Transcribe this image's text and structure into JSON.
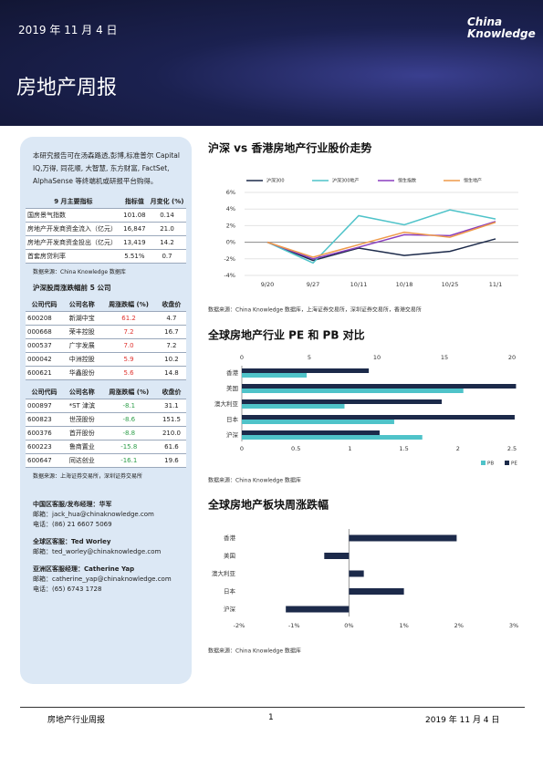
{
  "header": {
    "date": "2019 年 11 月 4 日",
    "logo": [
      "China",
      "Knowledge"
    ],
    "title": "房地产周报"
  },
  "sidebar": {
    "intro": "本研究报告可在汤森路透,彭博,标准普尔 Capital IQ,万得, 同花顺, 大智慧, 东方财富, FactSet, AlphaSense 等终端机或研报平台购得。",
    "tables": [
      {
        "header": [
          "9 月主要指标",
          "指标值",
          "月变化 (%)"
        ],
        "rows": [
          [
            "国房景气指数",
            "101.08",
            "0.14"
          ],
          [
            "房地产开发商资金流入（亿元）",
            "16,847",
            "21.0"
          ],
          [
            "房地产开发商资金投出（亿元）",
            "13,419",
            "14.2"
          ],
          [
            "首套房贷利率",
            "5.51%",
            "0.7"
          ]
        ],
        "source": "数据来源：China Knowledge 数据库"
      },
      {
        "title": "沪深股周涨跌幅前 5 公司",
        "header": [
          "公司代码",
          "公司名称",
          "周涨跌幅 (%)",
          "收盘价"
        ],
        "change_color": "#e0332f",
        "rows": [
          [
            "600208",
            "新湖中宝",
            "61.2",
            "4.7"
          ],
          [
            "000668",
            "荣丰控股",
            "7.2",
            "16.7"
          ],
          [
            "000537",
            "广宇发展",
            "7.0",
            "7.2"
          ],
          [
            "000042",
            "中洲控股",
            "5.9",
            "10.2"
          ],
          [
            "600621",
            "华鑫股份",
            "5.6",
            "14.8"
          ]
        ]
      },
      {
        "header": [
          "公司代码",
          "公司名称",
          "周涨跌幅 (%)",
          "收盘价"
        ],
        "change_color": "#2e9e4a",
        "rows": [
          [
            "000897",
            "*ST 津滨",
            "-8.1",
            "31.1"
          ],
          [
            "600823",
            "世茂股份",
            "-8.6",
            "151.5"
          ],
          [
            "600376",
            "首开股份",
            "-8.8",
            "210.0"
          ],
          [
            "600223",
            "鲁商置业",
            "-15.8",
            "61.6"
          ],
          [
            "600647",
            "同达创业",
            "-16.1",
            "19.6"
          ]
        ],
        "source": "数据来源：上海证券交易所，深圳证券交易所"
      }
    ],
    "contacts": [
      [
        "中国区客服/发布经理：华军",
        "邮箱：jack_hua@chinaknowledge.com",
        "电话：(86) 21 6607 5069"
      ],
      [
        "全球区客服：Ted Worley",
        "邮箱：ted_worley@chinaknowledge.com"
      ],
      [
        "亚洲区客服经理：Catherine Yap",
        "邮箱：catherine_yap@chinaknowledge.com",
        "电话：(65) 6743 1728"
      ]
    ]
  },
  "chart_data": [
    {
      "type": "line",
      "title": "沪深 vs 香港房地产行业股价走势",
      "categories": [
        "9/20",
        "9/27",
        "10/11",
        "10/18",
        "10/25",
        "11/1"
      ],
      "series": [
        {
          "name": "沪深300",
          "color": "#1c2a4a",
          "values": [
            0,
            -2.2,
            -0.7,
            -1.6,
            -1.1,
            0.4
          ]
        },
        {
          "name": "沪深300地产",
          "color": "#4fc3c9",
          "values": [
            0,
            -2.5,
            3.2,
            2.1,
            3.9,
            2.8
          ]
        },
        {
          "name": "恒生指数",
          "color": "#8a3fbf",
          "values": [
            0,
            -2.0,
            -0.6,
            0.9,
            0.8,
            2.5
          ]
        },
        {
          "name": "恒生地产",
          "color": "#ef9a4a",
          "values": [
            0,
            -1.8,
            -0.3,
            1.2,
            0.6,
            2.4
          ]
        }
      ],
      "ylim": [
        -4,
        6
      ],
      "yticks": [
        {
          "value": -4,
          "label": "-4%"
        },
        {
          "value": -2,
          "label": "-2%"
        },
        {
          "value": 0,
          "label": "0%"
        },
        {
          "value": 2,
          "label": "2%"
        },
        {
          "value": 4,
          "label": "4%"
        },
        {
          "value": 6,
          "label": "6%"
        }
      ],
      "grid": true,
      "source": "数据来源：China Knowledge 数据库，上海证券交易所，深圳证券交易所，香港交易所"
    },
    {
      "type": "hbar-dual",
      "title": "全球房地产行业 PE 和 PB 对比",
      "categories": [
        "香港",
        "美国",
        "澳大利亚",
        "日本",
        "沪深"
      ],
      "series": [
        {
          "name": "PB",
          "color": "#4fc3c9",
          "axis": "x2",
          "values": [
            0.6,
            2.05,
            0.95,
            1.41,
            1.67
          ]
        },
        {
          "name": "PE",
          "color": "#1c2a4a",
          "values": [
            9.4,
            20.3,
            14.8,
            20.2,
            10.2
          ]
        }
      ],
      "xlim": [
        0,
        20
      ],
      "xticks": [
        0,
        5,
        10,
        15,
        20
      ],
      "x2lim": [
        0,
        2.5
      ],
      "x2ticks": [
        0,
        0.5,
        1,
        1.5,
        2,
        2.5
      ],
      "legend": "bottom-right",
      "source": "数据来源：China Knowledge 数据库"
    },
    {
      "type": "hbar",
      "title": "全球房地产板块周涨跌幅",
      "categories": [
        "香港",
        "美国",
        "澳大利亚",
        "日本",
        "沪深"
      ],
      "color": "#1c2a4a",
      "values": [
        1.96,
        -0.45,
        0.27,
        1.0,
        -1.15
      ],
      "xlim": [
        -2,
        3
      ],
      "xticks": [
        {
          "value": -2,
          "label": "-2%"
        },
        {
          "value": -1,
          "label": "-1%"
        },
        {
          "value": 0,
          "label": "0%"
        },
        {
          "value": 1,
          "label": "1%"
        },
        {
          "value": 2,
          "label": "2%"
        },
        {
          "value": 3,
          "label": "3%"
        }
      ],
      "source": "数据来源：China Knowledge 数据库"
    }
  ],
  "footer": {
    "left": "房地产行业周报",
    "page": "1",
    "right": "2019 年 11 月 4 日"
  }
}
